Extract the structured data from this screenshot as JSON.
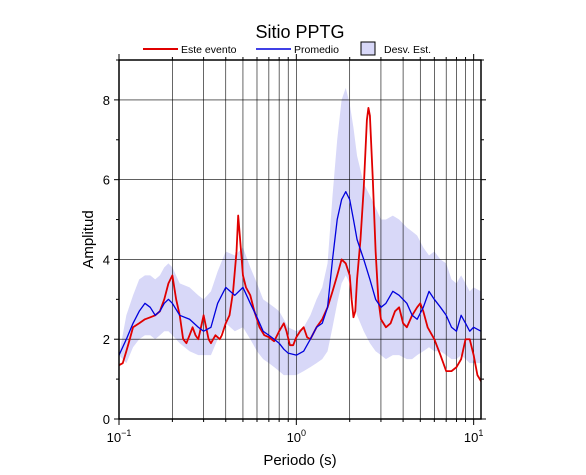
{
  "chart_data": {
    "type": "line",
    "title": "Sitio PPTG",
    "xlabel": "Periodo (s)",
    "ylabel": "Amplitud",
    "x_scale": "log",
    "xlim": [
      0.1,
      11
    ],
    "ylim": [
      0,
      9
    ],
    "grid": true,
    "legend_position": "top",
    "x_tick_labels": [
      {
        "value": 0.1,
        "base": "10",
        "exp": "−1"
      },
      {
        "value": 1,
        "base": "10",
        "exp": "0"
      },
      {
        "value": 10,
        "base": "10",
        "exp": "1"
      }
    ],
    "y_ticks": [
      0,
      2,
      4,
      6,
      8
    ],
    "colors": {
      "event": "#e00000",
      "mean": "#0000dd",
      "band": "#d8d8f8"
    },
    "legend": {
      "event": "Este evento",
      "mean": "Promedio",
      "band": "Desv. Est."
    },
    "series": [
      {
        "key": "event",
        "name": "Este evento",
        "points": [
          [
            0.1,
            1.35
          ],
          [
            0.105,
            1.4
          ],
          [
            0.11,
            1.7
          ],
          [
            0.115,
            2.0
          ],
          [
            0.12,
            2.3
          ],
          [
            0.13,
            2.4
          ],
          [
            0.14,
            2.5
          ],
          [
            0.15,
            2.55
          ],
          [
            0.16,
            2.6
          ],
          [
            0.17,
            2.7
          ],
          [
            0.18,
            3.0
          ],
          [
            0.19,
            3.4
          ],
          [
            0.2,
            3.6
          ],
          [
            0.21,
            3.0
          ],
          [
            0.22,
            2.6
          ],
          [
            0.23,
            2.0
          ],
          [
            0.24,
            1.9
          ],
          [
            0.25,
            2.1
          ],
          [
            0.26,
            2.3
          ],
          [
            0.27,
            2.1
          ],
          [
            0.28,
            2.0
          ],
          [
            0.29,
            2.3
          ],
          [
            0.3,
            2.6
          ],
          [
            0.31,
            2.3
          ],
          [
            0.32,
            2.0
          ],
          [
            0.33,
            1.9
          ],
          [
            0.35,
            2.1
          ],
          [
            0.37,
            2.0
          ],
          [
            0.38,
            2.1
          ],
          [
            0.4,
            2.4
          ],
          [
            0.42,
            2.6
          ],
          [
            0.44,
            3.2
          ],
          [
            0.46,
            4.2
          ],
          [
            0.47,
            5.1
          ],
          [
            0.48,
            4.6
          ],
          [
            0.5,
            3.6
          ],
          [
            0.52,
            3.3
          ],
          [
            0.55,
            3.1
          ],
          [
            0.58,
            2.7
          ],
          [
            0.62,
            2.3
          ],
          [
            0.66,
            2.1
          ],
          [
            0.7,
            2.05
          ],
          [
            0.75,
            1.95
          ],
          [
            0.8,
            2.2
          ],
          [
            0.85,
            2.4
          ],
          [
            0.88,
            2.2
          ],
          [
            0.92,
            1.85
          ],
          [
            0.96,
            1.85
          ],
          [
            1.0,
            2.05
          ],
          [
            1.05,
            2.2
          ],
          [
            1.1,
            2.3
          ],
          [
            1.15,
            2.05
          ],
          [
            1.2,
            2.0
          ],
          [
            1.3,
            2.3
          ],
          [
            1.4,
            2.5
          ],
          [
            1.5,
            2.8
          ],
          [
            1.6,
            3.2
          ],
          [
            1.7,
            3.6
          ],
          [
            1.8,
            4.0
          ],
          [
            1.9,
            3.9
          ],
          [
            2.0,
            3.6
          ],
          [
            2.05,
            3.0
          ],
          [
            2.1,
            2.55
          ],
          [
            2.15,
            2.7
          ],
          [
            2.2,
            3.5
          ],
          [
            2.3,
            4.5
          ],
          [
            2.4,
            5.8
          ],
          [
            2.5,
            7.5
          ],
          [
            2.55,
            7.8
          ],
          [
            2.6,
            7.6
          ],
          [
            2.7,
            6.0
          ],
          [
            2.8,
            4.2
          ],
          [
            2.9,
            3.0
          ],
          [
            3.0,
            2.5
          ],
          [
            3.2,
            2.3
          ],
          [
            3.4,
            2.4
          ],
          [
            3.6,
            2.7
          ],
          [
            3.8,
            2.8
          ],
          [
            4.0,
            2.4
          ],
          [
            4.2,
            2.3
          ],
          [
            4.5,
            2.6
          ],
          [
            4.8,
            2.8
          ],
          [
            5.0,
            2.9
          ],
          [
            5.2,
            2.7
          ],
          [
            5.5,
            2.3
          ],
          [
            6.0,
            2.0
          ],
          [
            6.5,
            1.6
          ],
          [
            7.0,
            1.2
          ],
          [
            7.5,
            1.2
          ],
          [
            8.0,
            1.3
          ],
          [
            8.5,
            1.5
          ],
          [
            9.0,
            2.0
          ],
          [
            9.5,
            2.0
          ],
          [
            10.0,
            1.6
          ],
          [
            10.5,
            1.1
          ],
          [
            11.0,
            0.95
          ]
        ]
      },
      {
        "key": "mean",
        "name": "Promedio",
        "points": [
          [
            0.1,
            1.6
          ],
          [
            0.11,
            2.0
          ],
          [
            0.12,
            2.4
          ],
          [
            0.13,
            2.7
          ],
          [
            0.14,
            2.9
          ],
          [
            0.15,
            2.8
          ],
          [
            0.16,
            2.6
          ],
          [
            0.17,
            2.7
          ],
          [
            0.18,
            2.9
          ],
          [
            0.19,
            3.0
          ],
          [
            0.2,
            2.9
          ],
          [
            0.22,
            2.6
          ],
          [
            0.25,
            2.5
          ],
          [
            0.28,
            2.3
          ],
          [
            0.3,
            2.2
          ],
          [
            0.33,
            2.3
          ],
          [
            0.36,
            2.9
          ],
          [
            0.4,
            3.3
          ],
          [
            0.45,
            3.1
          ],
          [
            0.5,
            3.3
          ],
          [
            0.55,
            2.9
          ],
          [
            0.6,
            2.55
          ],
          [
            0.65,
            2.2
          ],
          [
            0.7,
            2.1
          ],
          [
            0.75,
            2.0
          ],
          [
            0.8,
            1.9
          ],
          [
            0.85,
            1.75
          ],
          [
            0.9,
            1.65
          ],
          [
            1.0,
            1.6
          ],
          [
            1.1,
            1.7
          ],
          [
            1.2,
            2.0
          ],
          [
            1.3,
            2.3
          ],
          [
            1.4,
            2.4
          ],
          [
            1.5,
            2.8
          ],
          [
            1.6,
            4.0
          ],
          [
            1.7,
            5.0
          ],
          [
            1.8,
            5.5
          ],
          [
            1.9,
            5.7
          ],
          [
            2.0,
            5.5
          ],
          [
            2.1,
            5.0
          ],
          [
            2.2,
            4.5
          ],
          [
            2.4,
            4.0
          ],
          [
            2.6,
            3.5
          ],
          [
            2.8,
            3.0
          ],
          [
            3.0,
            2.8
          ],
          [
            3.2,
            2.9
          ],
          [
            3.5,
            3.2
          ],
          [
            3.8,
            3.1
          ],
          [
            4.2,
            2.9
          ],
          [
            4.5,
            2.6
          ],
          [
            4.8,
            2.5
          ],
          [
            5.2,
            2.8
          ],
          [
            5.6,
            3.2
          ],
          [
            6.0,
            3.0
          ],
          [
            6.5,
            2.8
          ],
          [
            7.0,
            2.6
          ],
          [
            7.5,
            2.3
          ],
          [
            8.0,
            2.2
          ],
          [
            8.5,
            2.6
          ],
          [
            9.0,
            2.4
          ],
          [
            9.5,
            2.2
          ],
          [
            10.0,
            2.3
          ],
          [
            11.0,
            2.2
          ]
        ]
      }
    ],
    "band": {
      "key": "band",
      "name": "Desv. Est.",
      "points": [
        [
          0.1,
          1.6,
          1.6
        ],
        [
          0.11,
          1.4,
          2.6
        ],
        [
          0.12,
          1.8,
          3.1
        ],
        [
          0.13,
          2.0,
          3.5
        ],
        [
          0.14,
          2.1,
          3.6
        ],
        [
          0.15,
          2.1,
          3.6
        ],
        [
          0.16,
          2.0,
          3.5
        ],
        [
          0.17,
          2.1,
          3.6
        ],
        [
          0.18,
          2.2,
          3.8
        ],
        [
          0.19,
          2.2,
          3.9
        ],
        [
          0.2,
          2.1,
          3.8
        ],
        [
          0.22,
          1.9,
          3.4
        ],
        [
          0.25,
          1.7,
          3.3
        ],
        [
          0.28,
          1.6,
          3.1
        ],
        [
          0.3,
          1.6,
          3.0
        ],
        [
          0.33,
          1.6,
          3.2
        ],
        [
          0.36,
          2.0,
          3.7
        ],
        [
          0.4,
          2.4,
          4.2
        ],
        [
          0.45,
          2.2,
          4.1
        ],
        [
          0.5,
          2.3,
          4.3
        ],
        [
          0.55,
          2.0,
          3.8
        ],
        [
          0.6,
          1.7,
          3.4
        ],
        [
          0.65,
          1.5,
          3.0
        ],
        [
          0.7,
          1.4,
          2.9
        ],
        [
          0.75,
          1.3,
          2.8
        ],
        [
          0.8,
          1.2,
          2.7
        ],
        [
          0.85,
          1.1,
          2.5
        ],
        [
          0.9,
          1.1,
          2.3
        ],
        [
          1.0,
          1.1,
          2.2
        ],
        [
          1.1,
          1.2,
          2.3
        ],
        [
          1.2,
          1.3,
          2.6
        ],
        [
          1.3,
          1.4,
          3.0
        ],
        [
          1.4,
          1.5,
          3.3
        ],
        [
          1.5,
          1.7,
          3.9
        ],
        [
          1.6,
          2.3,
          5.6
        ],
        [
          1.7,
          2.9,
          7.0
        ],
        [
          1.8,
          3.4,
          8.0
        ],
        [
          1.9,
          3.6,
          8.3
        ],
        [
          2.0,
          3.4,
          7.9
        ],
        [
          2.1,
          3.0,
          7.3
        ],
        [
          2.2,
          2.6,
          6.6
        ],
        [
          2.4,
          2.2,
          5.9
        ],
        [
          2.6,
          1.9,
          5.6
        ],
        [
          2.8,
          1.7,
          5.3
        ],
        [
          3.0,
          1.6,
          5.0
        ],
        [
          3.2,
          1.5,
          5.0
        ],
        [
          3.5,
          1.6,
          5.1
        ],
        [
          3.8,
          1.6,
          5.0
        ],
        [
          4.2,
          1.5,
          4.8
        ],
        [
          4.5,
          1.5,
          4.7
        ],
        [
          4.8,
          1.6,
          4.6
        ],
        [
          5.2,
          1.7,
          4.3
        ],
        [
          5.6,
          1.8,
          4.1
        ],
        [
          6.0,
          1.7,
          4.2
        ],
        [
          6.5,
          1.7,
          4.0
        ],
        [
          7.0,
          1.6,
          3.9
        ],
        [
          7.5,
          1.5,
          3.5
        ],
        [
          8.0,
          1.5,
          3.4
        ],
        [
          8.5,
          1.6,
          3.6
        ],
        [
          9.0,
          1.5,
          3.4
        ],
        [
          9.5,
          1.4,
          3.2
        ],
        [
          10.0,
          1.4,
          3.3
        ],
        [
          11.0,
          1.4,
          3.2
        ]
      ]
    }
  }
}
